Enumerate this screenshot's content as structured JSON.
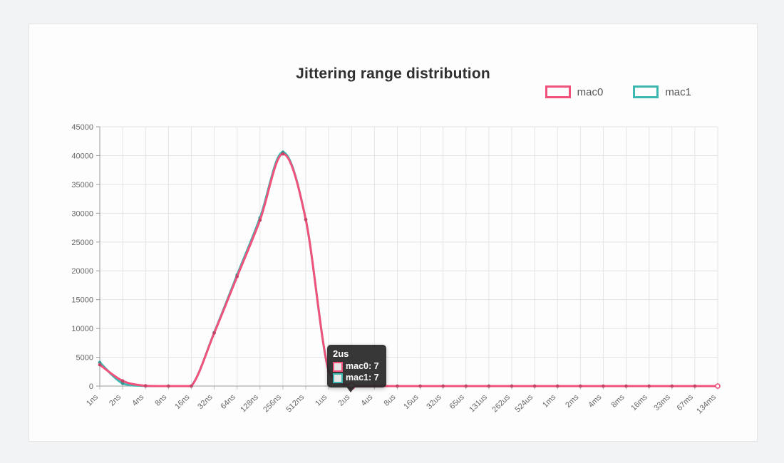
{
  "chart_data": {
    "type": "line",
    "title": "Jittering range distribution",
    "categories": [
      "1ns",
      "2ns",
      "4ns",
      "8ns",
      "16ns",
      "32ns",
      "64ns",
      "128ns",
      "256ns",
      "512ns",
      "1us",
      "2us",
      "4us",
      "8us",
      "16us",
      "32us",
      "65us",
      "131us",
      "262us",
      "524us",
      "1ms",
      "2ms",
      "4ms",
      "8ms",
      "16ms",
      "33ms",
      "67ms",
      "134ms"
    ],
    "series": [
      {
        "name": "mac0",
        "color": "#f0527c",
        "values": [
          3700,
          900,
          50,
          0,
          0,
          9200,
          19000,
          28800,
          40300,
          28900,
          2600,
          7,
          0,
          0,
          0,
          0,
          0,
          0,
          0,
          0,
          0,
          0,
          0,
          0,
          0,
          0,
          0,
          0
        ]
      },
      {
        "name": "mac1",
        "color": "#3cb8b0",
        "values": [
          4100,
          450,
          20,
          0,
          0,
          9300,
          19300,
          29200,
          40600,
          28900,
          2600,
          7,
          0,
          0,
          0,
          0,
          0,
          0,
          0,
          0,
          0,
          0,
          0,
          0,
          0,
          0,
          0,
          0
        ]
      }
    ],
    "ylim": [
      0,
      45000
    ],
    "ytick_step": 5000,
    "xlabel": "",
    "ylabel": "",
    "grid": true,
    "smooth": true,
    "legend_position": "top-right",
    "x_label_rotation": -45
  },
  "tooltip": {
    "title": "2us",
    "items": [
      {
        "label": "mac0",
        "value": "7",
        "text": "mac0: 7",
        "color": "#f0527c"
      },
      {
        "label": "mac1",
        "value": "7",
        "text": "mac1: 7",
        "color": "#3cb8b0"
      }
    ],
    "highlight": {
      "category": "2us",
      "series": "mac0"
    }
  },
  "colors": {
    "grid": "#e4e4e4",
    "axis": "#9b9b9b",
    "tick_text": "#666666",
    "title_text": "#2f2f2f",
    "tooltip_bg": "rgba(38,38,38,0.92)"
  }
}
